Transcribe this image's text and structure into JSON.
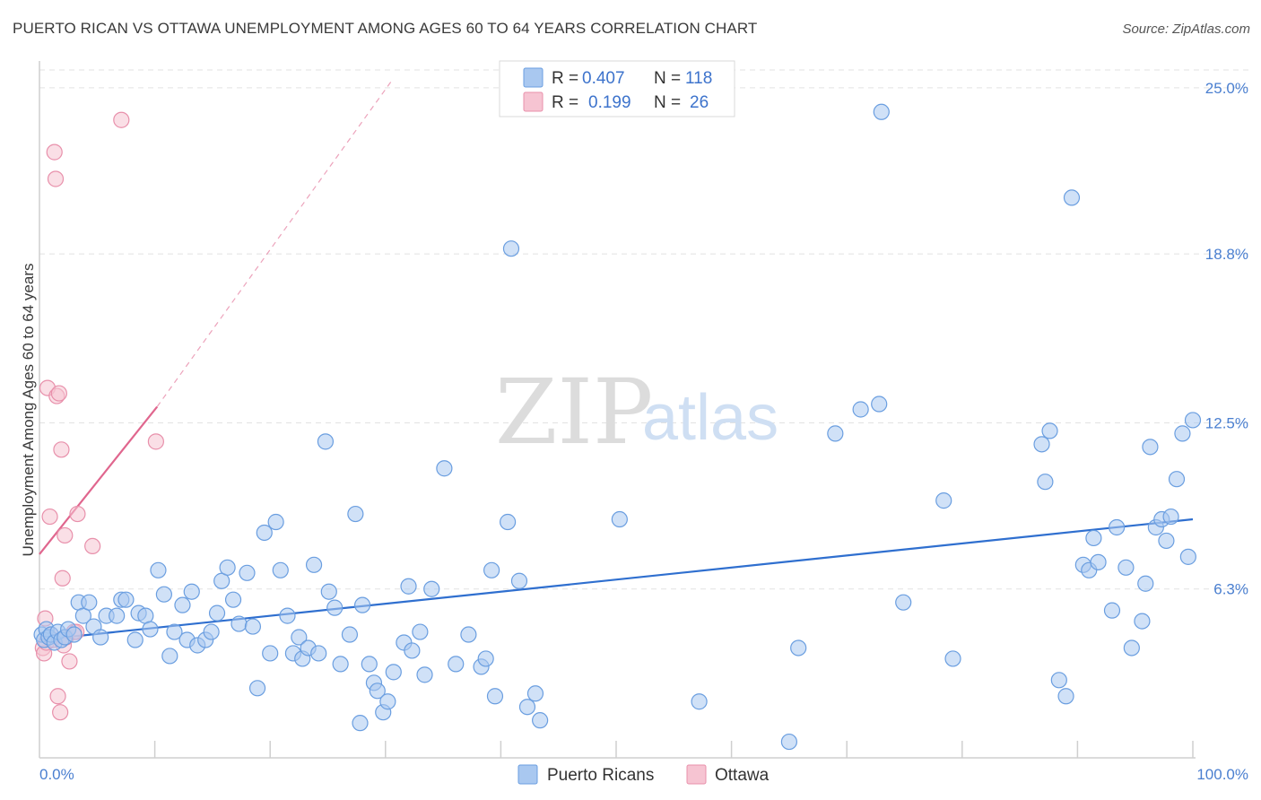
{
  "title": "PUERTO RICAN VS OTTAWA UNEMPLOYMENT AMONG AGES 60 TO 64 YEARS CORRELATION CHART",
  "source": "Source: ZipAtlas.com",
  "watermark": {
    "zip": "ZIP",
    "atlas": "atlas"
  },
  "colors": {
    "blue_fill": "#a9c8f0",
    "blue_stroke": "#6a9ee0",
    "blue_line": "#2f6fcf",
    "pink_fill": "#f6c4d2",
    "pink_stroke": "#e890ab",
    "pink_line": "#e0668e",
    "grid": "#e2e2e2",
    "tick_label": "#4a7fd0"
  },
  "legend": {
    "rows": [
      {
        "r_label": "R =",
        "r_value": "0.407",
        "n_label": "N =",
        "n_value": "118"
      },
      {
        "r_label": "R =",
        "r_value": "0.199",
        "n_label": "N =",
        "n_value": "26"
      }
    ]
  },
  "chart_data": {
    "type": "scatter",
    "title": "PUERTO RICAN VS OTTAWA UNEMPLOYMENT AMONG AGES 60 TO 64 YEARS CORRELATION CHART",
    "xlabel": "",
    "ylabel": "Unemployment Among Ages 60 to 64 years",
    "xlim": [
      0,
      100
    ],
    "ylim": [
      0,
      26.0
    ],
    "x_tick_labels": [
      "0.0%",
      "100.0%"
    ],
    "y_ticks": [
      6.3,
      12.5,
      18.8,
      25.0
    ],
    "y_tick_labels": [
      "6.3%",
      "12.5%",
      "18.8%",
      "25.0%"
    ],
    "series": [
      {
        "name": "Puerto Ricans",
        "trend": {
          "x0": 0,
          "y0": 4.4,
          "x1": 100,
          "y1": 8.9,
          "dashed_extension": false
        },
        "points": [
          [
            0.2,
            4.6
          ],
          [
            0.4,
            4.4
          ],
          [
            0.6,
            4.8
          ],
          [
            0.8,
            4.5
          ],
          [
            1.0,
            4.6
          ],
          [
            1.3,
            4.3
          ],
          [
            1.6,
            4.7
          ],
          [
            1.9,
            4.4
          ],
          [
            2.2,
            4.5
          ],
          [
            2.5,
            4.8
          ],
          [
            3.0,
            4.6
          ],
          [
            3.4,
            5.8
          ],
          [
            3.8,
            5.3
          ],
          [
            4.3,
            5.8
          ],
          [
            4.7,
            4.9
          ],
          [
            5.3,
            4.5
          ],
          [
            5.8,
            5.3
          ],
          [
            6.7,
            5.3
          ],
          [
            7.1,
            5.9
          ],
          [
            7.5,
            5.9
          ],
          [
            8.3,
            4.4
          ],
          [
            8.6,
            5.4
          ],
          [
            9.2,
            5.3
          ],
          [
            9.6,
            4.8
          ],
          [
            10.3,
            7.0
          ],
          [
            10.8,
            6.1
          ],
          [
            11.3,
            3.8
          ],
          [
            11.7,
            4.7
          ],
          [
            12.4,
            5.7
          ],
          [
            12.8,
            4.4
          ],
          [
            13.2,
            6.2
          ],
          [
            13.7,
            4.2
          ],
          [
            14.4,
            4.4
          ],
          [
            14.9,
            4.7
          ],
          [
            15.4,
            5.4
          ],
          [
            15.8,
            6.6
          ],
          [
            16.3,
            7.1
          ],
          [
            16.8,
            5.9
          ],
          [
            17.3,
            5.0
          ],
          [
            18.0,
            6.9
          ],
          [
            18.5,
            4.9
          ],
          [
            18.9,
            2.6
          ],
          [
            19.5,
            8.4
          ],
          [
            20.0,
            3.9
          ],
          [
            20.5,
            8.8
          ],
          [
            20.9,
            7.0
          ],
          [
            21.5,
            5.3
          ],
          [
            22.0,
            3.9
          ],
          [
            22.5,
            4.5
          ],
          [
            22.8,
            3.7
          ],
          [
            23.3,
            4.1
          ],
          [
            23.8,
            7.2
          ],
          [
            24.2,
            3.9
          ],
          [
            24.8,
            11.8
          ],
          [
            25.1,
            6.2
          ],
          [
            25.6,
            5.6
          ],
          [
            26.1,
            3.5
          ],
          [
            26.9,
            4.6
          ],
          [
            27.4,
            9.1
          ],
          [
            27.8,
            1.3
          ],
          [
            28.0,
            5.7
          ],
          [
            28.6,
            3.5
          ],
          [
            29.0,
            2.8
          ],
          [
            29.3,
            2.5
          ],
          [
            29.8,
            1.7
          ],
          [
            30.2,
            2.1
          ],
          [
            30.7,
            3.2
          ],
          [
            31.6,
            4.3
          ],
          [
            32.0,
            6.4
          ],
          [
            32.3,
            4.0
          ],
          [
            33.0,
            4.7
          ],
          [
            33.4,
            3.1
          ],
          [
            34.0,
            6.3
          ],
          [
            35.1,
            10.8
          ],
          [
            36.1,
            3.5
          ],
          [
            37.2,
            4.6
          ],
          [
            38.3,
            3.4
          ],
          [
            38.7,
            3.7
          ],
          [
            39.2,
            7.0
          ],
          [
            39.5,
            2.3
          ],
          [
            40.6,
            8.8
          ],
          [
            40.9,
            19.0
          ],
          [
            41.6,
            6.6
          ],
          [
            42.3,
            1.9
          ],
          [
            43.0,
            2.4
          ],
          [
            43.4,
            1.4
          ],
          [
            50.3,
            8.9
          ],
          [
            57.2,
            2.1
          ],
          [
            65.0,
            0.6
          ],
          [
            65.8,
            4.1
          ],
          [
            69.0,
            12.1
          ],
          [
            71.2,
            13.0
          ],
          [
            72.8,
            13.2
          ],
          [
            73.0,
            24.1
          ],
          [
            74.9,
            5.8
          ],
          [
            78.4,
            9.6
          ],
          [
            79.2,
            3.7
          ],
          [
            86.9,
            11.7
          ],
          [
            87.2,
            10.3
          ],
          [
            87.6,
            12.2
          ],
          [
            88.4,
            2.9
          ],
          [
            89.0,
            2.3
          ],
          [
            89.5,
            20.9
          ],
          [
            90.5,
            7.2
          ],
          [
            91.0,
            7.0
          ],
          [
            91.4,
            8.2
          ],
          [
            91.8,
            7.3
          ],
          [
            93.0,
            5.5
          ],
          [
            93.4,
            8.6
          ],
          [
            94.2,
            7.1
          ],
          [
            94.7,
            4.1
          ],
          [
            95.6,
            5.1
          ],
          [
            95.9,
            6.5
          ],
          [
            96.3,
            11.6
          ],
          [
            96.8,
            8.6
          ],
          [
            97.3,
            8.9
          ],
          [
            97.7,
            8.1
          ],
          [
            98.1,
            9.0
          ],
          [
            98.6,
            10.4
          ],
          [
            99.1,
            12.1
          ],
          [
            99.6,
            7.5
          ],
          [
            100.0,
            12.6
          ]
        ]
      },
      {
        "name": "Ottawa",
        "trend": {
          "x0": 0,
          "y0": 7.6,
          "x1": 10.2,
          "y1": 13.1,
          "dashed_extension": true,
          "dash_x1": 30.6,
          "dash_y1": 25.3
        },
        "points": [
          [
            0.3,
            4.1
          ],
          [
            0.4,
            3.9
          ],
          [
            0.5,
            5.2
          ],
          [
            0.6,
            4.3
          ],
          [
            0.7,
            13.8
          ],
          [
            0.9,
            9.0
          ],
          [
            1.0,
            4.6
          ],
          [
            1.1,
            4.4
          ],
          [
            1.3,
            22.6
          ],
          [
            1.4,
            21.6
          ],
          [
            1.5,
            13.5
          ],
          [
            1.6,
            2.3
          ],
          [
            1.7,
            13.6
          ],
          [
            1.8,
            1.7
          ],
          [
            1.9,
            11.5
          ],
          [
            2.0,
            6.7
          ],
          [
            2.1,
            4.2
          ],
          [
            2.2,
            8.3
          ],
          [
            2.3,
            4.5
          ],
          [
            2.6,
            3.6
          ],
          [
            3.0,
            4.7
          ],
          [
            3.2,
            4.7
          ],
          [
            3.3,
            9.1
          ],
          [
            4.6,
            7.9
          ],
          [
            7.1,
            23.8
          ],
          [
            10.1,
            11.8
          ]
        ]
      }
    ]
  },
  "bottom_legend": [
    {
      "label": "Puerto Ricans"
    },
    {
      "label": "Ottawa"
    }
  ]
}
